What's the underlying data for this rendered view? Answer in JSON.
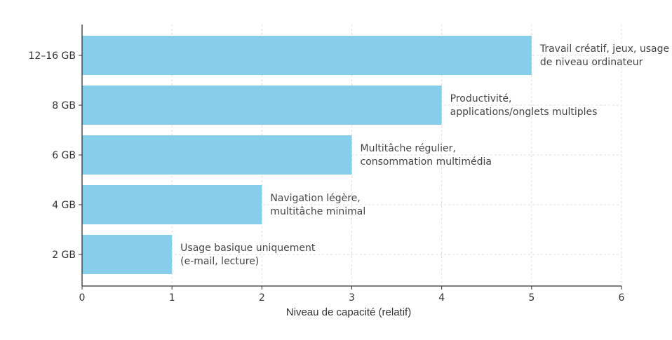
{
  "chart_data": {
    "type": "bar",
    "orientation": "horizontal",
    "categories": [
      "2 GB",
      "4 GB",
      "6 GB",
      "8 GB",
      "12–16 GB"
    ],
    "values": [
      1,
      2,
      3,
      4,
      5
    ],
    "annotations": [
      [
        "Usage basique uniquement",
        "(e-mail, lecture)"
      ],
      [
        "Navigation légère,",
        "multitâche minimal"
      ],
      [
        "Multitâche régulier,",
        "consommation multimédia"
      ],
      [
        "Productivité,",
        "applications/onglets multiples"
      ],
      [
        "Travail créatif, jeux, usage",
        "de niveau ordinateur"
      ]
    ],
    "title": "",
    "xlabel": "Niveau de capacité (relatif)",
    "ylabel": "",
    "xlim": [
      0,
      6
    ],
    "xticks": [
      "0",
      "1",
      "2",
      "3",
      "4",
      "5",
      "6"
    ],
    "grid": true,
    "bar_color": "#87CEEB"
  }
}
